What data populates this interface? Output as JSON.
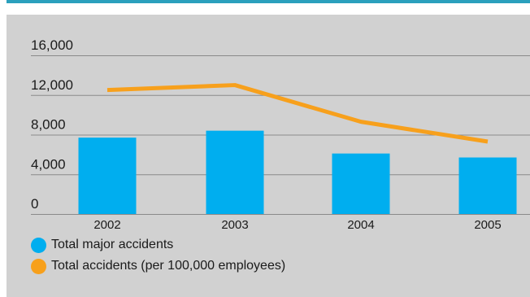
{
  "chart_data": {
    "type": "bar",
    "categories": [
      "2002",
      "2003",
      "2004",
      "2005"
    ],
    "y_ticks": [
      "0",
      "4,000",
      "8,000",
      "12,000",
      "16,000"
    ],
    "ylim": [
      0,
      16000
    ],
    "grid": true,
    "legend_placement": "bottom-left",
    "series": [
      {
        "name": "Total major accidents",
        "type": "bar",
        "color": "#00aeef",
        "values": [
          7700,
          8400,
          6100,
          5700
        ]
      },
      {
        "name": "Total accidents (per 100,000 employees)",
        "type": "line",
        "color": "#f7a01c",
        "values": [
          12500,
          13000,
          9300,
          7300
        ]
      }
    ]
  }
}
